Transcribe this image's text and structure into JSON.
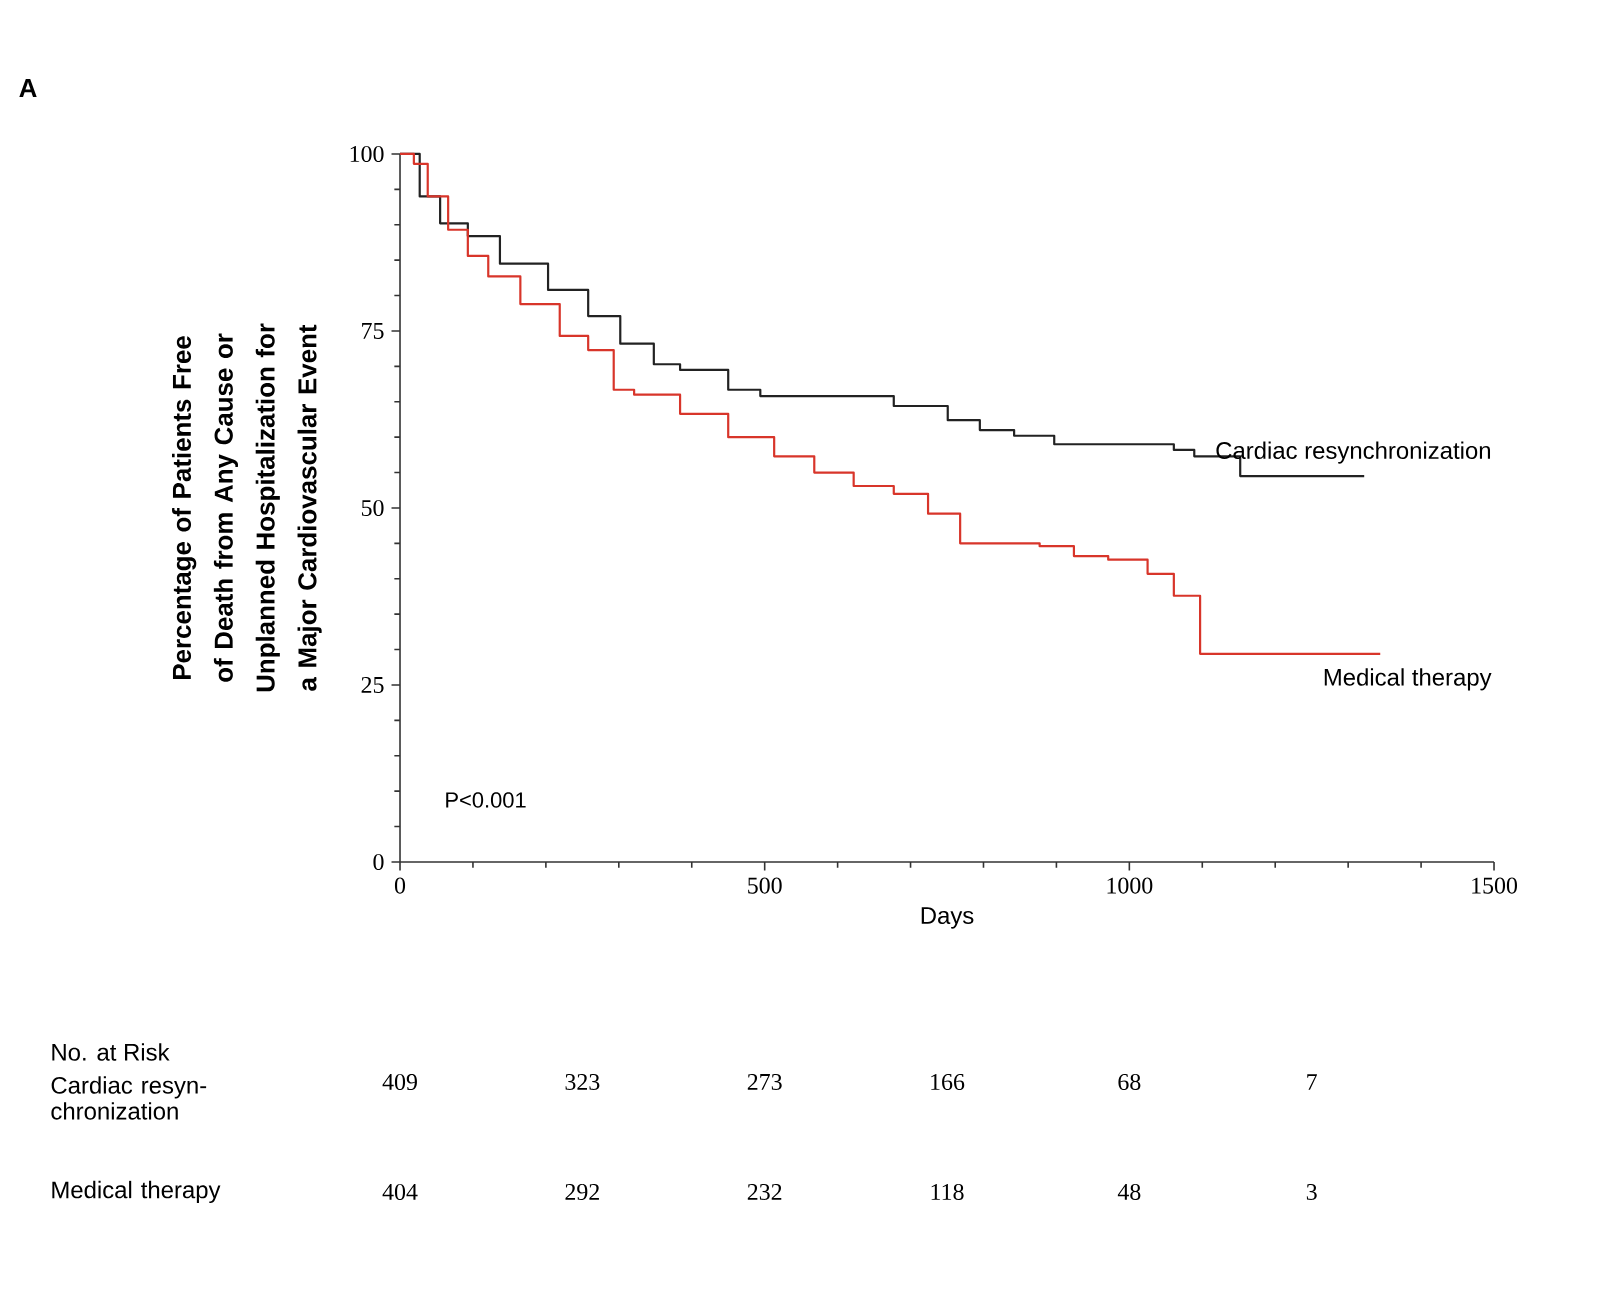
{
  "chart_data": {
    "type": "step",
    "xlabel": "Days",
    "ylabel": "Percentage of Patients Free of Death from Any Cause or Unplanned Hospitalization for a Major Cardiovascular Event",
    "xlim": [
      0,
      1500
    ],
    "ylim": [
      0,
      100
    ],
    "xticks": [
      0,
      500,
      1000,
      1500
    ],
    "yticks": [
      0,
      25,
      50,
      75,
      100
    ],
    "series": [
      {
        "name": "Cardiac resynchronization",
        "color": "#222222",
        "x": [
          0,
          27,
          55,
          93,
          137,
          203,
          258,
          302,
          348,
          384,
          450,
          494,
          548,
          642,
          677,
          751,
          795,
          842,
          897,
          1061,
          1089,
          1152,
          1322
        ],
        "values": [
          100,
          94,
          90.2,
          88.4,
          84.5,
          80.8,
          77.1,
          73.2,
          70.3,
          69.5,
          66.7,
          65.8,
          65.8,
          65.8,
          64.4,
          62.4,
          61,
          60.2,
          59,
          58.2,
          57.3,
          54.5,
          54.5
        ]
      },
      {
        "name": "Medical therapy",
        "color": "#d8352a",
        "x": [
          0,
          19,
          38,
          66,
          93,
          121,
          165,
          219,
          258,
          293,
          321,
          384,
          450,
          513,
          568,
          622,
          677,
          724,
          768,
          877,
          924,
          971,
          1025,
          1061,
          1097,
          1344
        ],
        "values": [
          100,
          98.6,
          94,
          89.3,
          85.6,
          82.7,
          78.8,
          74.3,
          72.3,
          66.7,
          66,
          63.3,
          60,
          57.3,
          55,
          53.1,
          52,
          49.2,
          45,
          44.6,
          43.2,
          42.7,
          40.7,
          37.6,
          29.4,
          29.4
        ]
      }
    ],
    "annotations": [
      "A",
      "P<0.001",
      "No. at Risk",
      "Cardiac resyn-chronization",
      "409",
      "323",
      "273",
      "166",
      "68",
      "7",
      "Medical therapy",
      "404",
      "292",
      "232",
      "118",
      "48",
      "3"
    ]
  }
}
